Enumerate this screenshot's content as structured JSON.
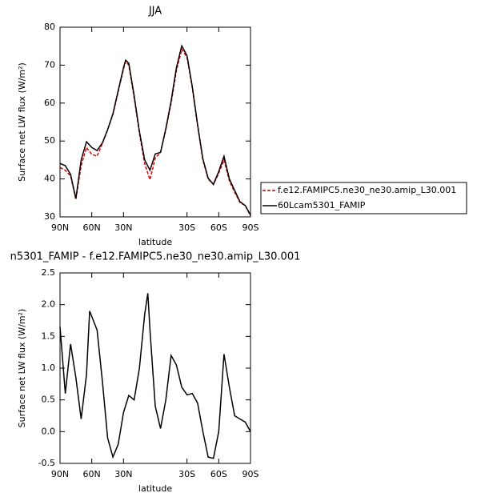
{
  "chart_data": [
    {
      "type": "line",
      "title": "JJA",
      "xlabel": "latitude",
      "ylabel": "Surface net LW flux (W/m²)",
      "x": [
        90,
        85,
        80,
        75,
        70,
        65,
        60,
        55,
        50,
        45,
        40,
        35,
        30,
        28,
        25,
        20,
        15,
        10,
        5,
        0,
        -5,
        -10,
        -15,
        -20,
        -25,
        -30,
        -35,
        -40,
        -45,
        -50,
        -55,
        -60,
        -65,
        -70,
        -75,
        -80,
        -85,
        -90
      ],
      "series": [
        {
          "name": "f.e12.FAMIPC5.ne30_ne30.amip_L30.001",
          "color": "#e00000",
          "dashed": true,
          "values": [
            43,
            42.3,
            40.8,
            34.6,
            43.5,
            48.3,
            46.5,
            46,
            49.3,
            53,
            57,
            63,
            69,
            71,
            70,
            61.5,
            52,
            44,
            39.8,
            45.5,
            47,
            53,
            60,
            68.5,
            74.2,
            72,
            64,
            54,
            45,
            40,
            38.5,
            41.5,
            45,
            39.5,
            36.5,
            33.8,
            33,
            30.3
          ]
        },
        {
          "name": "60Lcam5301_FAMIP",
          "color": "#000000",
          "dashed": false,
          "values": [
            44.1,
            43.5,
            41.2,
            34.8,
            45,
            49.8,
            48.3,
            47.5,
            49.5,
            53,
            57.2,
            63.3,
            69.3,
            71.3,
            70.5,
            62,
            52.5,
            45,
            42.3,
            46.6,
            47,
            53.3,
            60.5,
            69.3,
            75.1,
            72.5,
            64.3,
            54.3,
            45.3,
            40.2,
            38.6,
            42,
            46,
            40,
            37,
            34,
            33,
            30.5
          ]
        }
      ],
      "xlim": [
        90,
        -90
      ],
      "ylim": [
        30,
        80
      ],
      "xticks": [
        {
          "value": 90,
          "label": "90N"
        },
        {
          "value": 60,
          "label": "60N"
        },
        {
          "value": 30,
          "label": "30N"
        },
        {
          "value": -30,
          "label": "30S"
        },
        {
          "value": -60,
          "label": "60S"
        },
        {
          "value": -90,
          "label": "90S"
        }
      ],
      "yticks": [
        30,
        40,
        50,
        60,
        70,
        80
      ],
      "legend": "right"
    },
    {
      "type": "line",
      "title": "n5301_FAMIP - f.e12.FAMIPC5.ne30_ne30.amip_L30.001",
      "xlabel": "latitude",
      "ylabel": "Surface net LW flux (W/m²)",
      "x": [
        90,
        85,
        80,
        75,
        70,
        65,
        62,
        55,
        50,
        45,
        40,
        35,
        30,
        25,
        20,
        15,
        10,
        7,
        5,
        0,
        -5,
        -10,
        -15,
        -20,
        -25,
        -30,
        -35,
        -40,
        -45,
        -50,
        -55,
        -60,
        -65,
        -70,
        -75,
        -80,
        -85,
        -90
      ],
      "series": [
        {
          "color": "#000000",
          "dashed": false,
          "values": [
            1.65,
            0.6,
            1.38,
            0.85,
            0.2,
            0.9,
            1.9,
            1.6,
            0.8,
            -0.1,
            -0.4,
            -0.2,
            0.3,
            0.57,
            0.5,
            1.0,
            1.85,
            2.18,
            1.6,
            0.4,
            0.05,
            0.5,
            1.2,
            1.05,
            0.7,
            0.58,
            0.6,
            0.45,
            0.0,
            -0.4,
            -0.42,
            0.0,
            1.22,
            0.7,
            0.25,
            0.2,
            0.15,
            0.0
          ]
        }
      ],
      "xlim": [
        90,
        -90
      ],
      "ylim": [
        -0.5,
        2.5
      ],
      "xticks": [
        {
          "value": 90,
          "label": "90N"
        },
        {
          "value": 60,
          "label": "60N"
        },
        {
          "value": 30,
          "label": "30N"
        },
        {
          "value": -30,
          "label": "30S"
        },
        {
          "value": -60,
          "label": "60S"
        },
        {
          "value": -90,
          "label": "90S"
        }
      ],
      "yticks": [
        -0.5,
        {
          "value": 0,
          "label": "0.0"
        },
        0.5,
        {
          "value": 1,
          "label": "1.0"
        },
        1.5,
        {
          "value": 2,
          "label": "2.0"
        },
        2.5
      ]
    }
  ]
}
